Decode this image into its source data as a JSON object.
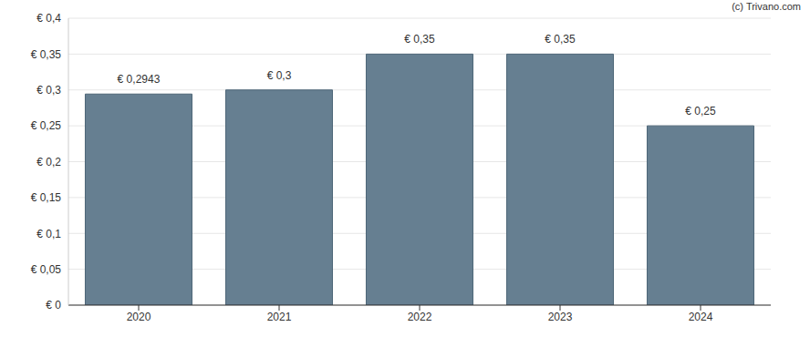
{
  "chart_data": {
    "type": "bar",
    "annotations": [
      "(c) Trivano.com"
    ],
    "categories": [
      "2020",
      "2021",
      "2022",
      "2023",
      "2024"
    ],
    "values": [
      0.2943,
      0.3,
      0.35,
      0.35,
      0.25
    ],
    "value_labels": [
      "€ 0,2943",
      "€ 0,3",
      "€ 0,35",
      "€ 0,35",
      "€ 0,25"
    ],
    "data_labels": true,
    "color": "#667f91",
    "ylim": [
      0,
      0.4
    ],
    "yticks": [
      {
        "value": 0,
        "label": "€ 0"
      },
      {
        "value": 0.05,
        "label": "€ 0,05"
      },
      {
        "value": 0.1,
        "label": "€ 0,1"
      },
      {
        "value": 0.15,
        "label": "€ 0,15"
      },
      {
        "value": 0.2,
        "label": "€ 0,2"
      },
      {
        "value": 0.25,
        "label": "€ 0,25"
      },
      {
        "value": 0.3,
        "label": "€ 0,3"
      },
      {
        "value": 0.35,
        "label": "€ 0,35"
      },
      {
        "value": 0.4,
        "label": "€ 0,4"
      }
    ],
    "grid": true
  }
}
